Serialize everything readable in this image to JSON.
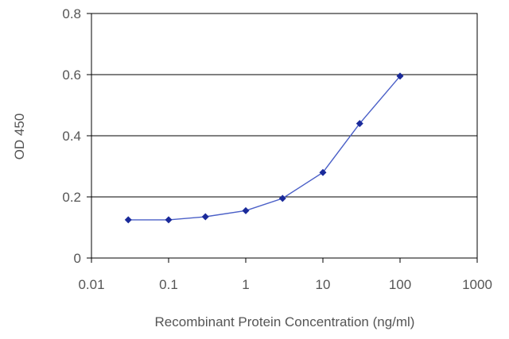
{
  "chart_data": {
    "type": "line",
    "xlabel": "Recombinant Protein Concentration (ng/ml)",
    "ylabel": "OD 450",
    "xscale": "log",
    "xlim": [
      0.01,
      1000
    ],
    "ylim": [
      0,
      0.8
    ],
    "xticks": [
      "0.01",
      "0.1",
      "1",
      "10",
      "100",
      "1000"
    ],
    "yticks": [
      "0",
      "0.2",
      "0.4",
      "0.6",
      "0.8"
    ],
    "grid": "horizontal",
    "series": [
      {
        "x": [
          0.03,
          0.1,
          0.3,
          1,
          3,
          10,
          30,
          100
        ],
        "y": [
          0.125,
          0.125,
          0.135,
          0.155,
          0.195,
          0.28,
          0.44,
          0.595
        ]
      }
    ],
    "colors": {
      "line": "#4a5fc7",
      "marker": "#1a2a9a",
      "grid": "#000000",
      "frame": "#000000",
      "text": "#555555"
    }
  }
}
